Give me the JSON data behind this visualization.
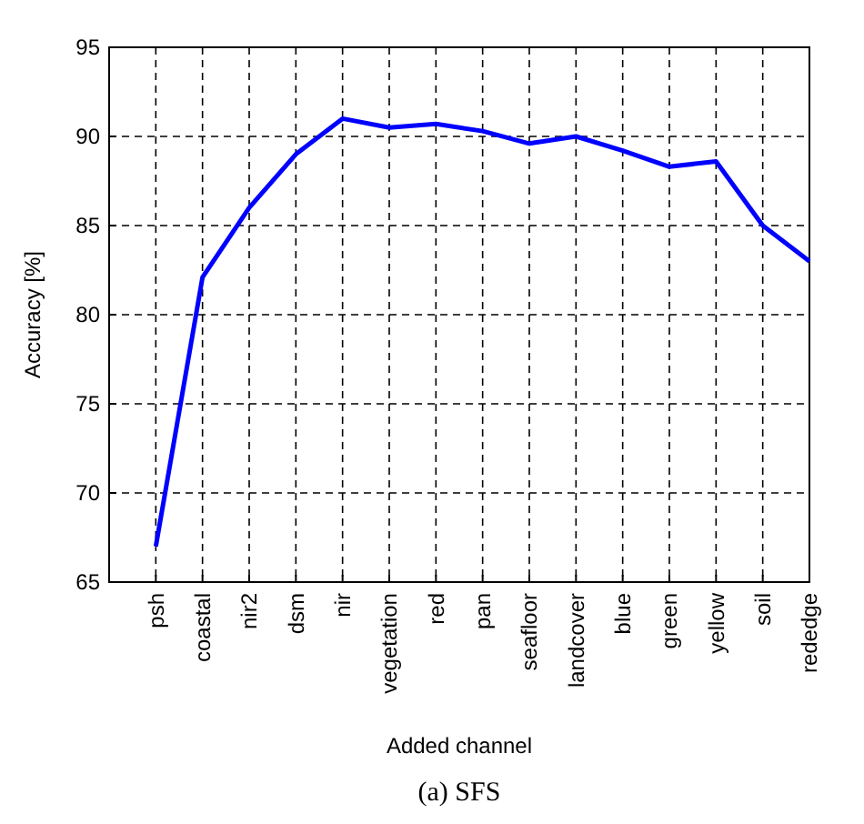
{
  "chart_data": {
    "type": "line",
    "xlabel": "Added channel",
    "ylabel": "Accuracy [%]",
    "annotations": [
      "(a) SFS"
    ],
    "categories": [
      "psh",
      "coastal",
      "nir2",
      "dsm",
      "nir",
      "vegetation",
      "red",
      "pan",
      "seafloor",
      "landcover",
      "blue",
      "green",
      "yellow",
      "soil",
      "rededge"
    ],
    "series": [
      {
        "color": "#0000ff",
        "values": [
          67,
          82.1,
          86,
          89,
          91,
          90.5,
          90.7,
          90.3,
          89.6,
          90,
          89.2,
          88.3,
          88.6,
          85,
          83
        ]
      }
    ],
    "ylim": [
      65,
      95
    ],
    "yticks": [
      65,
      70,
      75,
      80,
      85,
      90,
      95
    ],
    "grid": true,
    "marker": "none",
    "line_style": "solid"
  }
}
